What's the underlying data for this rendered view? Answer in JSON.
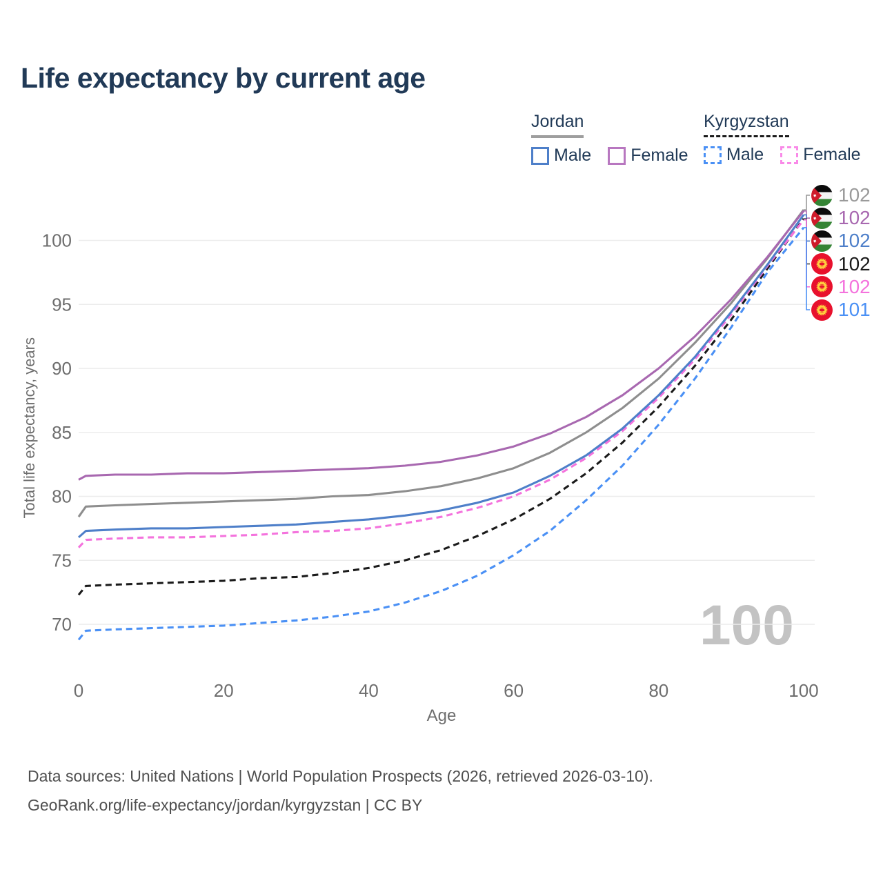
{
  "title": "Life expectancy by current age",
  "watermark": "100",
  "legend": {
    "groups": [
      {
        "country": "Jordan",
        "line_style": "solid",
        "underline_color": "#9e9e9e",
        "items": [
          {
            "label": "Male",
            "color": "#4e7fc9",
            "dashed": false
          },
          {
            "label": "Female",
            "color": "#b877c0",
            "dashed": false
          }
        ]
      },
      {
        "country": "Kyrgyzstan",
        "line_style": "dashed",
        "underline_color": "#1a1a1a",
        "items": [
          {
            "label": "Male",
            "color": "#4a90f5",
            "dashed": true
          },
          {
            "label": "Female",
            "color": "#f98ae8",
            "dashed": true
          }
        ]
      }
    ]
  },
  "chart_data": {
    "type": "line",
    "title": "Life expectancy by current age",
    "xlabel": "Age",
    "ylabel": "Total life expectancy, years",
    "xlim": [
      0,
      100
    ],
    "ylim": [
      67.5,
      103.5
    ],
    "x_ticks": [
      0,
      20,
      40,
      60,
      80,
      100
    ],
    "y_ticks": [
      70,
      75,
      80,
      85,
      90,
      95,
      100
    ],
    "grid": "horizontal-only",
    "legend_position": "top-right",
    "x": [
      0,
      1,
      5,
      10,
      15,
      20,
      25,
      30,
      35,
      40,
      45,
      50,
      55,
      60,
      65,
      70,
      75,
      80,
      85,
      90,
      95,
      100
    ],
    "series": [
      {
        "name": "Jordan Female",
        "country": "Jordan",
        "sex": "Female",
        "color": "#a868b0",
        "dash": false,
        "values": [
          81.3,
          81.6,
          81.7,
          81.7,
          81.8,
          81.8,
          81.9,
          82.0,
          82.1,
          82.2,
          82.4,
          82.7,
          83.2,
          83.9,
          84.9,
          86.2,
          87.9,
          90.0,
          92.5,
          95.4,
          98.7,
          102.3
        ]
      },
      {
        "name": "Jordan Both sexes",
        "country": "Jordan",
        "sex": "All",
        "color": "#8e8e8e",
        "dash": false,
        "values": [
          78.4,
          79.2,
          79.3,
          79.4,
          79.5,
          79.6,
          79.7,
          79.8,
          80.0,
          80.1,
          80.4,
          80.8,
          81.4,
          82.2,
          83.4,
          85.0,
          86.9,
          89.2,
          92.0,
          95.1,
          98.6,
          102.4
        ]
      },
      {
        "name": "Jordan Male",
        "country": "Jordan",
        "sex": "Male",
        "color": "#4e7fc9",
        "dash": false,
        "values": [
          76.8,
          77.3,
          77.4,
          77.5,
          77.5,
          77.6,
          77.7,
          77.8,
          78.0,
          78.2,
          78.5,
          78.9,
          79.5,
          80.3,
          81.6,
          83.2,
          85.3,
          87.9,
          90.9,
          94.4,
          98.1,
          102.0
        ]
      },
      {
        "name": "Kyrgyzstan Both sexes",
        "country": "Kyrgyzstan",
        "sex": "All",
        "color": "#1a1a1a",
        "dash": true,
        "values": [
          72.3,
          73.0,
          73.1,
          73.2,
          73.3,
          73.4,
          73.6,
          73.7,
          74.0,
          74.4,
          75.0,
          75.8,
          76.9,
          78.2,
          79.8,
          81.8,
          84.2,
          87.0,
          90.2,
          93.8,
          97.8,
          101.7
        ]
      },
      {
        "name": "Kyrgyzstan Female",
        "country": "Kyrgyzstan",
        "sex": "Female",
        "color": "#f473dd",
        "dash": true,
        "values": [
          76.0,
          76.6,
          76.7,
          76.8,
          76.8,
          76.9,
          77.0,
          77.2,
          77.3,
          77.5,
          77.9,
          78.4,
          79.1,
          80.0,
          81.3,
          83.0,
          85.1,
          87.7,
          90.7,
          94.2,
          98.0,
          101.6
        ]
      },
      {
        "name": "Kyrgyzstan Male",
        "country": "Kyrgyzstan",
        "sex": "Male",
        "color": "#4a90f5",
        "dash": true,
        "values": [
          68.8,
          69.5,
          69.6,
          69.7,
          69.8,
          69.9,
          70.1,
          70.3,
          70.6,
          71.0,
          71.7,
          72.6,
          73.8,
          75.4,
          77.3,
          79.7,
          82.4,
          85.6,
          89.2,
          93.2,
          97.5,
          101.0
        ]
      }
    ],
    "end_labels": [
      {
        "value": "102",
        "color": "#9a9a9a",
        "flag": "jordan",
        "series": "Jordan Both sexes"
      },
      {
        "value": "102",
        "color": "#a868b0",
        "flag": "jordan",
        "series": "Jordan Female"
      },
      {
        "value": "102",
        "color": "#4e7fc9",
        "flag": "jordan",
        "series": "Jordan Male"
      },
      {
        "value": "102",
        "color": "#1a1a1a",
        "flag": "kyrgyzstan",
        "series": "Kyrgyzstan Both sexes"
      },
      {
        "value": "102",
        "color": "#f473dd",
        "flag": "kyrgyzstan",
        "series": "Kyrgyzstan Female"
      },
      {
        "value": "101",
        "color": "#4a90f5",
        "flag": "kyrgyzstan",
        "series": "Kyrgyzstan Male"
      }
    ],
    "current_age_indicator": "100"
  },
  "footer": {
    "line1": "Data sources: United Nations | World Population Prospects (2026, retrieved 2026-03-10).",
    "line2": "GeoRank.org/life-expectancy/jordan/kyrgyzstan | CC BY"
  }
}
